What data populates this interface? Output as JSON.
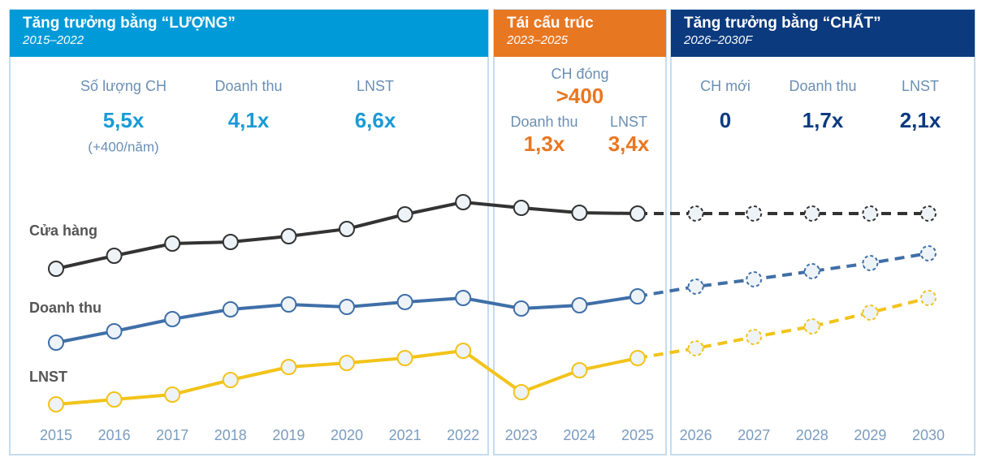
{
  "chart_data": {
    "type": "line",
    "panels": [
      {
        "title": "Tăng trưởng bằng “LƯỢNG”",
        "subtitle": "2015–2022",
        "color": "#009ad8",
        "value_color": "#1a9ad6",
        "metrics": [
          {
            "label": "Số lượng CH",
            "value": "5,5x",
            "note": "(+400/năm)"
          },
          {
            "label": "Doanh thu",
            "value": "4,1x"
          },
          {
            "label": "LNST",
            "value": "6,6x"
          }
        ]
      },
      {
        "title": "Tái cấu trúc",
        "subtitle": "2023–2025",
        "color": "#e87722",
        "value_color": "#e87722",
        "metrics": [
          {
            "label": "CH đóng",
            "value": ">400"
          },
          {
            "label": "Doanh thu",
            "value": "1,3x"
          },
          {
            "label": "LNST",
            "value": "3,4x"
          }
        ]
      },
      {
        "title": "Tăng trưởng bằng “CHẤT”",
        "subtitle": "2026–2030F",
        "color": "#0b3a7e",
        "value_color": "#0b3a7e",
        "metrics": [
          {
            "label": "CH mới",
            "value": "0"
          },
          {
            "label": "Doanh thu",
            "value": "1,7x"
          },
          {
            "label": "LNST",
            "value": "2,1x"
          }
        ]
      }
    ],
    "categories": [
      "2015",
      "2016",
      "2017",
      "2018",
      "2019",
      "2020",
      "2021",
      "2022",
      "2023",
      "2024",
      "2025",
      "2026",
      "2027",
      "2028",
      "2029",
      "2030"
    ],
    "forecast_from": "2025",
    "series": [
      {
        "name": "Cửa hàng",
        "color": "#333333",
        "values": [
          238,
          254,
          269,
          271,
          278,
          287,
          305,
          320,
          313,
          307,
          306,
          306,
          306,
          306,
          306,
          306
        ]
      },
      {
        "name": "Doanh thu",
        "color": "#3f6fa8",
        "values": [
          147,
          161,
          176,
          188,
          194,
          191,
          197,
          202,
          189,
          193,
          204,
          216,
          225,
          235,
          245,
          257
        ]
      },
      {
        "name": "LNST",
        "color": "#f2c319",
        "values": [
          71,
          77,
          83,
          101,
          117,
          122,
          128,
          137,
          86,
          113,
          128,
          140,
          154,
          167,
          184,
          202
        ]
      }
    ]
  }
}
